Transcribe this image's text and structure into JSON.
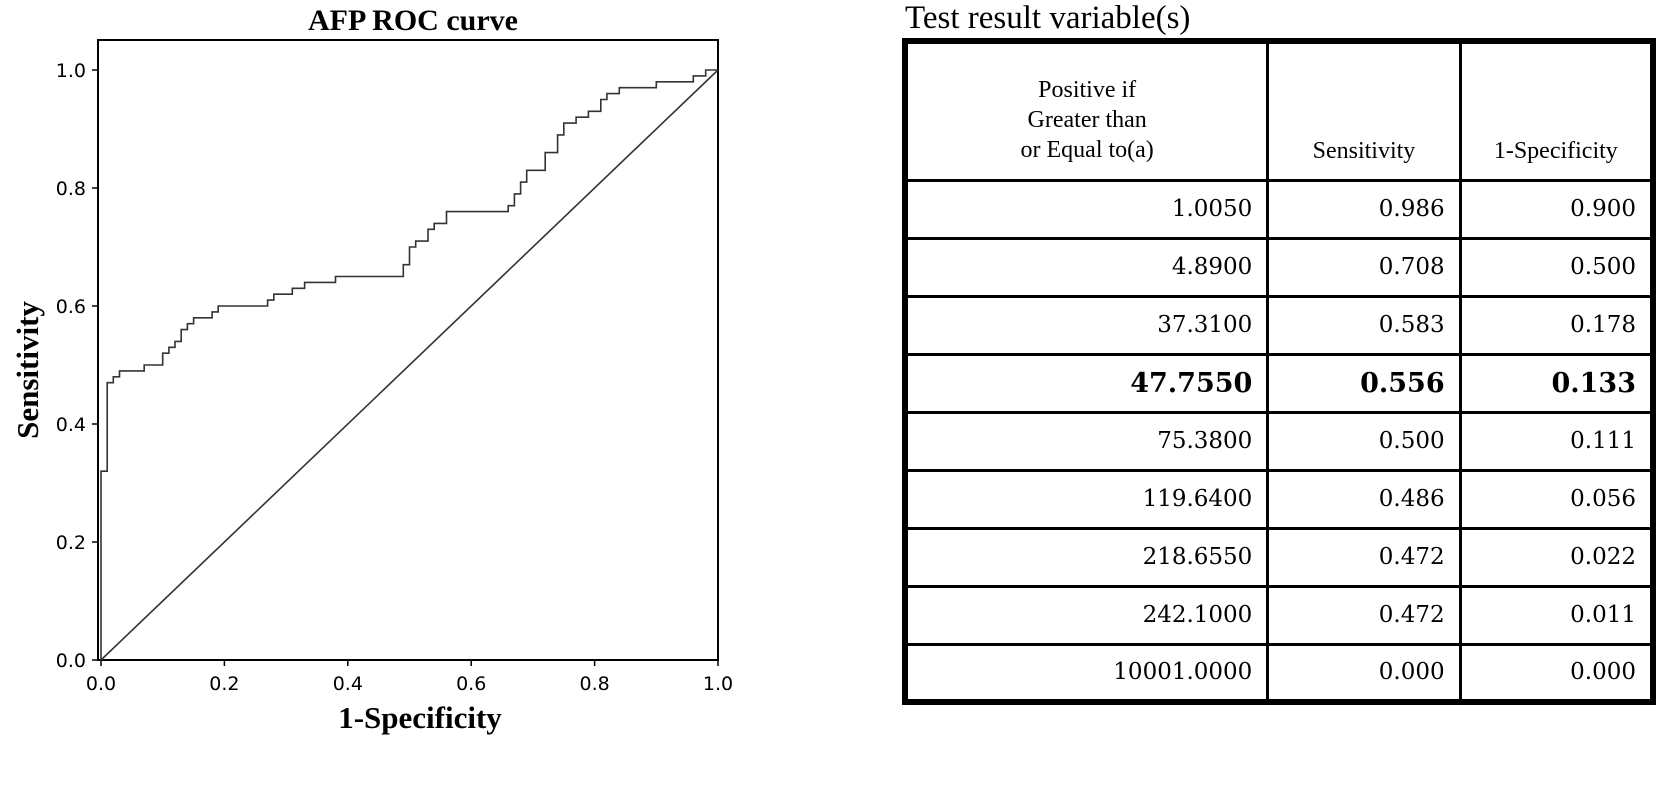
{
  "chart_data": {
    "type": "line",
    "title": "AFP ROC curve",
    "xlabel": "1-Specificity",
    "ylabel": "Sensitivity",
    "xlim": [
      0,
      1
    ],
    "ylim": [
      0,
      1
    ],
    "x_ticks": [
      "0.0",
      "0.2",
      "0.4",
      "0.6",
      "0.8",
      "1.0"
    ],
    "y_ticks": [
      "0.0",
      "0.2",
      "0.4",
      "0.6",
      "0.8",
      "1.0"
    ],
    "grid": false,
    "series": [
      {
        "values": [
          [
            0,
            0
          ],
          [
            0,
            0.32
          ],
          [
            0.01,
            0.32
          ],
          [
            0.01,
            0.47
          ],
          [
            0.02,
            0.47
          ],
          [
            0.02,
            0.48
          ],
          [
            0.03,
            0.48
          ],
          [
            0.03,
            0.49
          ],
          [
            0.07,
            0.49
          ],
          [
            0.07,
            0.5
          ],
          [
            0.1,
            0.5
          ],
          [
            0.1,
            0.52
          ],
          [
            0.11,
            0.52
          ],
          [
            0.11,
            0.53
          ],
          [
            0.12,
            0.53
          ],
          [
            0.12,
            0.54
          ],
          [
            0.13,
            0.54
          ],
          [
            0.13,
            0.56
          ],
          [
            0.14,
            0.56
          ],
          [
            0.14,
            0.57
          ],
          [
            0.15,
            0.57
          ],
          [
            0.15,
            0.58
          ],
          [
            0.18,
            0.58
          ],
          [
            0.18,
            0.59
          ],
          [
            0.19,
            0.59
          ],
          [
            0.19,
            0.6
          ],
          [
            0.27,
            0.6
          ],
          [
            0.27,
            0.61
          ],
          [
            0.28,
            0.61
          ],
          [
            0.28,
            0.62
          ],
          [
            0.31,
            0.62
          ],
          [
            0.31,
            0.63
          ],
          [
            0.33,
            0.63
          ],
          [
            0.33,
            0.64
          ],
          [
            0.38,
            0.64
          ],
          [
            0.38,
            0.65
          ],
          [
            0.49,
            0.65
          ],
          [
            0.49,
            0.67
          ],
          [
            0.5,
            0.67
          ],
          [
            0.5,
            0.7
          ],
          [
            0.51,
            0.7
          ],
          [
            0.51,
            0.71
          ],
          [
            0.53,
            0.71
          ],
          [
            0.53,
            0.73
          ],
          [
            0.54,
            0.73
          ],
          [
            0.54,
            0.74
          ],
          [
            0.56,
            0.74
          ],
          [
            0.56,
            0.76
          ],
          [
            0.66,
            0.76
          ],
          [
            0.66,
            0.77
          ],
          [
            0.67,
            0.77
          ],
          [
            0.67,
            0.79
          ],
          [
            0.68,
            0.79
          ],
          [
            0.68,
            0.81
          ],
          [
            0.69,
            0.81
          ],
          [
            0.69,
            0.83
          ],
          [
            0.72,
            0.83
          ],
          [
            0.72,
            0.86
          ],
          [
            0.74,
            0.86
          ],
          [
            0.74,
            0.89
          ],
          [
            0.75,
            0.89
          ],
          [
            0.75,
            0.91
          ],
          [
            0.77,
            0.91
          ],
          [
            0.77,
            0.92
          ],
          [
            0.79,
            0.92
          ],
          [
            0.79,
            0.93
          ],
          [
            0.81,
            0.93
          ],
          [
            0.81,
            0.95
          ],
          [
            0.82,
            0.95
          ],
          [
            0.82,
            0.96
          ],
          [
            0.84,
            0.96
          ],
          [
            0.84,
            0.97
          ],
          [
            0.9,
            0.97
          ],
          [
            0.9,
            0.98
          ],
          [
            0.96,
            0.98
          ],
          [
            0.96,
            0.99
          ],
          [
            0.98,
            0.99
          ],
          [
            0.98,
            1.0
          ],
          [
            1.0,
            1.0
          ]
        ]
      },
      {
        "values": [
          [
            0,
            0
          ],
          [
            1,
            1
          ]
        ]
      }
    ]
  },
  "table": {
    "title": "Test result variable(s)",
    "headers": {
      "threshold": [
        "Positive if",
        "Greater than",
        "or Equal to(a)"
      ],
      "sensitivity": "Sensitivity",
      "specificity": "1-Specificity"
    },
    "rows": [
      [
        "1.0050",
        "0.986",
        "0.900"
      ],
      [
        "4.8900",
        "0.708",
        "0.500"
      ],
      [
        "37.3100",
        "0.583",
        "0.178"
      ],
      [
        "47.7550",
        "0.556",
        "0.133"
      ],
      [
        "75.3800",
        "0.500",
        "0.111"
      ],
      [
        "119.6400",
        "0.486",
        "0.056"
      ],
      [
        "218.6550",
        "0.472",
        "0.022"
      ],
      [
        "242.1000",
        "0.472",
        "0.011"
      ],
      [
        "10001.0000",
        "0.000",
        "0.000"
      ]
    ],
    "highlight_row": 3
  }
}
